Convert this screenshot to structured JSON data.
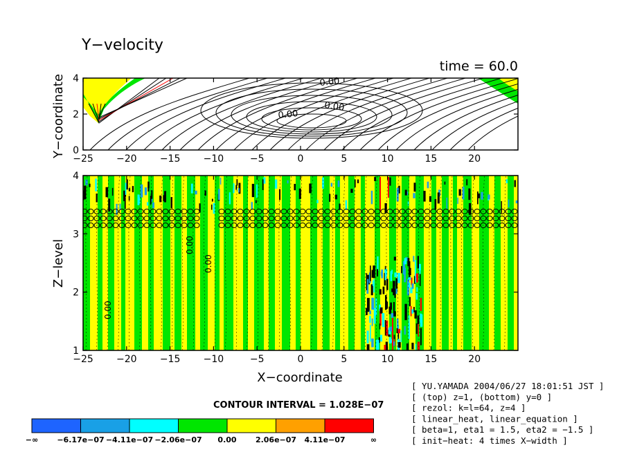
{
  "title": "Y−velocity",
  "time_label": "time = 60.0",
  "top_panel": {
    "ylabel": "Y−coordinate",
    "xticks": [
      "−25",
      "−20",
      "−15",
      "−10",
      "−5",
      "0",
      "5",
      "10",
      "15",
      "20"
    ],
    "yticks": [
      "0",
      "2",
      "4"
    ],
    "contour_labels": [
      "0.00",
      "0.00",
      "0.00"
    ]
  },
  "bottom_panel": {
    "ylabel": "Z−level",
    "xlabel": "X−coordinate",
    "xticks": [
      "−25",
      "−20",
      "−15",
      "−10",
      "−5",
      "0",
      "5",
      "10",
      "15",
      "20"
    ],
    "yticks": [
      "1",
      "2",
      "3",
      "4"
    ],
    "contour_labels": [
      "0.00",
      "0.00",
      "0.00"
    ]
  },
  "contour_interval": "CONTOUR INTERVAL = 1.028E−07",
  "colorbar": {
    "colors": [
      "#1e64ff",
      "#19a0e6",
      "#00ffff",
      "#00e600",
      "#ffff00",
      "#ffa000",
      "#ff0000"
    ],
    "labels": [
      "−∞",
      "−6.17e−07",
      "−4.11e−07",
      "−2.06e−07",
      "0.00",
      "2.06e−07",
      "4.11e−07",
      "∞"
    ]
  },
  "info": [
    "[ YU.YAMADA 2004/06/27 18:01:51 JST ]",
    "[ (top) z=1, (bottom) y=0 ]",
    "[ rezol: k=l=64, z=4 ]",
    "[ linear_heat, linear_equation ]",
    "[ beta=1, eta1 = 1.5, eta2 = −1.5 ]",
    "[ init−heat: 4 times X−width ]"
  ],
  "chart_data": [
    {
      "type": "heatmap",
      "panel": "top",
      "title": "Y−velocity",
      "ylabel": "Y−coordinate",
      "xlim": [
        -25,
        25
      ],
      "ylim": [
        0,
        4
      ],
      "levels": [
        -6.17e-07,
        -4.11e-07,
        -2.06e-07,
        0.0,
        2.06e-07,
        4.11e-07
      ],
      "contour_interval": 1.028e-07
    },
    {
      "type": "heatmap",
      "panel": "bottom",
      "xlabel": "X−coordinate",
      "ylabel": "Z−level",
      "xlim": [
        -25,
        25
      ],
      "ylim": [
        1,
        4
      ],
      "levels": [
        -6.17e-07,
        -4.11e-07,
        -2.06e-07,
        0.0,
        2.06e-07,
        4.11e-07
      ],
      "contour_interval": 1.028e-07
    }
  ]
}
